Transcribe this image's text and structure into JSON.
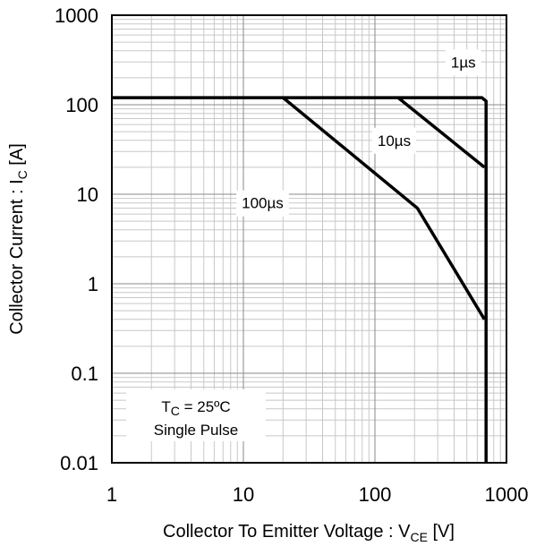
{
  "chart_data": {
    "type": "line",
    "xscale": "log",
    "yscale": "log",
    "xlim": [
      1,
      1000
    ],
    "ylim": [
      0.01,
      1000
    ],
    "grid": true,
    "xlabel": {
      "main": "Collector To Emitter Voltage : V",
      "sub": "CE",
      "unit": " [V]"
    },
    "ylabel": {
      "main": "Collector Current : I",
      "sub": "C",
      "unit": " [A]"
    },
    "x_ticks": [
      1,
      10,
      100,
      1000
    ],
    "x_tick_labels": [
      "1",
      "10",
      "100",
      "1000"
    ],
    "y_ticks": [
      0.01,
      0.1,
      1,
      10,
      100,
      1000
    ],
    "y_tick_labels": [
      "0.01",
      "0.1",
      "1",
      "10",
      "100",
      "1000"
    ],
    "series": [
      {
        "name": "1µs",
        "x": [
          1,
          650,
          700,
          700
        ],
        "y": [
          120,
          120,
          110,
          0.01
        ]
      },
      {
        "name": "10µs",
        "x": [
          150,
          680
        ],
        "y": [
          120,
          20
        ]
      },
      {
        "name": "100µs",
        "x": [
          20,
          210,
          680
        ],
        "y": [
          120,
          7,
          0.4
        ]
      }
    ],
    "annotations": [
      {
        "text": "1µs",
        "x": 470,
        "y": 300
      },
      {
        "text": "10µs",
        "x": 140,
        "y": 40
      },
      {
        "text": "100µs",
        "x": 14,
        "y": 8
      }
    ],
    "condition_box": {
      "t_main": "T",
      "t_sub": "C",
      "t_value": " = 25ºC",
      "line2": "Single Pulse"
    }
  }
}
